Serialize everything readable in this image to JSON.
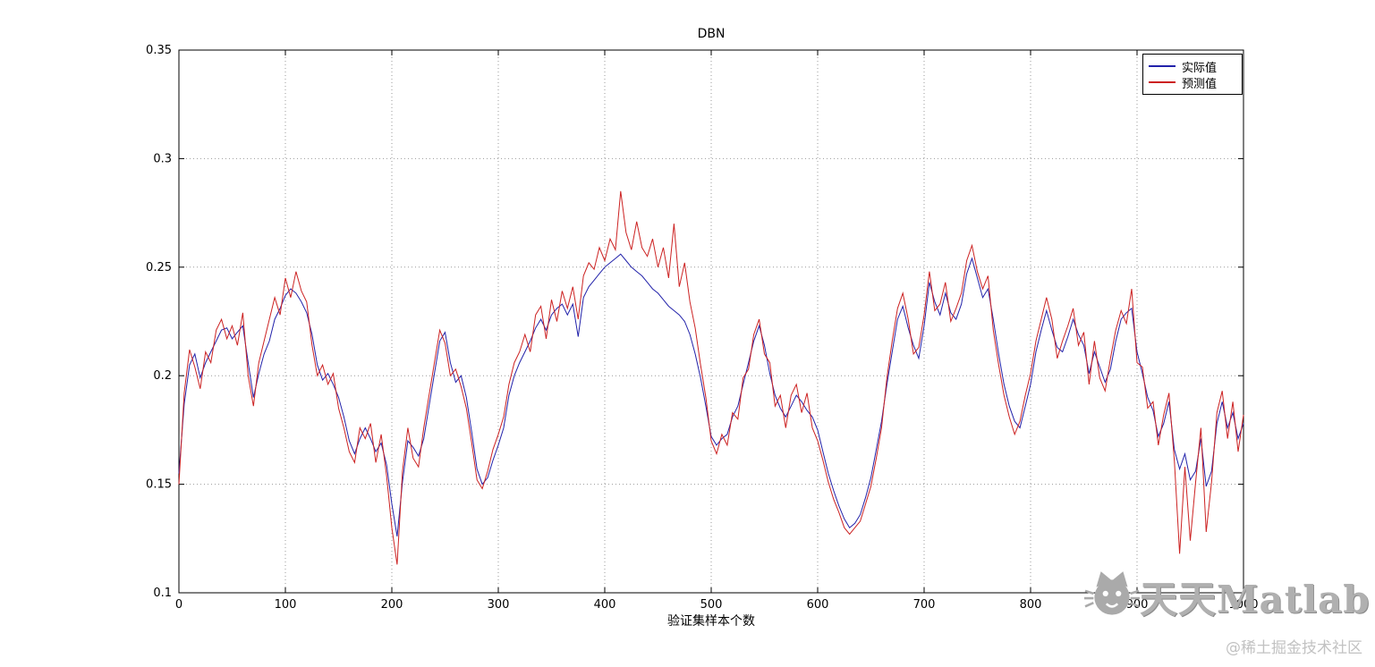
{
  "figure": {
    "title": "DBN",
    "xlabel": "验证集样本个数",
    "background": "#ffffff"
  },
  "watermark": {
    "brand": "天天Matlab",
    "credit": "@稀土掘金技术社区"
  },
  "chart_data": {
    "type": "line",
    "title": "DBN",
    "xlabel": "验证集样本个数",
    "ylabel": "",
    "xlim": [
      0,
      1000
    ],
    "ylim": [
      0.1,
      0.35
    ],
    "x_ticks": [
      0,
      100,
      200,
      300,
      400,
      500,
      600,
      700,
      800,
      900,
      1000
    ],
    "x_tick_labels": [
      "0",
      "100",
      "200",
      "300",
      "400",
      "500",
      "600",
      "700",
      "800",
      "900",
      "1000"
    ],
    "y_ticks": [
      0.1,
      0.15,
      0.2,
      0.25,
      0.3,
      0.35
    ],
    "y_tick_labels": [
      "0.1",
      "0.15",
      "0.2",
      "0.25",
      "0.3",
      "0.35"
    ],
    "grid": true,
    "grid_style": "dotted",
    "legend_position": "top-right",
    "x_start": 0,
    "x_step": 5,
    "series": [
      {
        "name": "实际值",
        "color": "#2222aa",
        "values": [
          0.155,
          0.187,
          0.205,
          0.21,
          0.199,
          0.206,
          0.211,
          0.216,
          0.221,
          0.222,
          0.217,
          0.22,
          0.223,
          0.206,
          0.19,
          0.201,
          0.21,
          0.216,
          0.226,
          0.231,
          0.237,
          0.24,
          0.238,
          0.234,
          0.229,
          0.219,
          0.205,
          0.198,
          0.201,
          0.196,
          0.19,
          0.181,
          0.17,
          0.164,
          0.171,
          0.176,
          0.171,
          0.165,
          0.169,
          0.159,
          0.141,
          0.126,
          0.151,
          0.17,
          0.167,
          0.163,
          0.171,
          0.186,
          0.201,
          0.216,
          0.22,
          0.206,
          0.197,
          0.2,
          0.19,
          0.174,
          0.157,
          0.15,
          0.153,
          0.161,
          0.168,
          0.176,
          0.191,
          0.2,
          0.206,
          0.211,
          0.216,
          0.222,
          0.226,
          0.221,
          0.228,
          0.231,
          0.233,
          0.228,
          0.233,
          0.218,
          0.236,
          0.241,
          0.244,
          0.247,
          0.25,
          0.252,
          0.254,
          0.256,
          0.253,
          0.25,
          0.248,
          0.246,
          0.243,
          0.24,
          0.238,
          0.235,
          0.232,
          0.23,
          0.228,
          0.225,
          0.219,
          0.21,
          0.199,
          0.186,
          0.172,
          0.168,
          0.171,
          0.173,
          0.181,
          0.186,
          0.196,
          0.206,
          0.216,
          0.223,
          0.214,
          0.201,
          0.191,
          0.185,
          0.181,
          0.186,
          0.191,
          0.188,
          0.184,
          0.181,
          0.175,
          0.165,
          0.155,
          0.147,
          0.14,
          0.134,
          0.13,
          0.132,
          0.136,
          0.144,
          0.153,
          0.166,
          0.179,
          0.196,
          0.211,
          0.226,
          0.232,
          0.222,
          0.214,
          0.208,
          0.223,
          0.243,
          0.234,
          0.228,
          0.238,
          0.229,
          0.226,
          0.233,
          0.247,
          0.254,
          0.245,
          0.236,
          0.24,
          0.226,
          0.21,
          0.196,
          0.186,
          0.179,
          0.176,
          0.186,
          0.196,
          0.211,
          0.221,
          0.23,
          0.221,
          0.213,
          0.211,
          0.218,
          0.226,
          0.219,
          0.214,
          0.201,
          0.211,
          0.204,
          0.197,
          0.203,
          0.216,
          0.226,
          0.229,
          0.231,
          0.211,
          0.201,
          0.19,
          0.184,
          0.172,
          0.178,
          0.188,
          0.166,
          0.157,
          0.164,
          0.152,
          0.156,
          0.171,
          0.149,
          0.156,
          0.178,
          0.188,
          0.176,
          0.183,
          0.171,
          0.178
        ]
      },
      {
        "name": "预测值",
        "color": "#cc2222",
        "values": [
          0.15,
          0.192,
          0.212,
          0.204,
          0.194,
          0.211,
          0.206,
          0.221,
          0.226,
          0.217,
          0.223,
          0.214,
          0.229,
          0.2,
          0.186,
          0.206,
          0.216,
          0.226,
          0.236,
          0.228,
          0.245,
          0.236,
          0.248,
          0.239,
          0.234,
          0.214,
          0.2,
          0.205,
          0.196,
          0.201,
          0.185,
          0.176,
          0.165,
          0.16,
          0.176,
          0.171,
          0.178,
          0.16,
          0.173,
          0.154,
          0.13,
          0.113,
          0.156,
          0.176,
          0.162,
          0.158,
          0.176,
          0.191,
          0.206,
          0.221,
          0.215,
          0.2,
          0.203,
          0.195,
          0.185,
          0.169,
          0.152,
          0.148,
          0.156,
          0.166,
          0.173,
          0.181,
          0.196,
          0.206,
          0.211,
          0.219,
          0.211,
          0.228,
          0.232,
          0.217,
          0.235,
          0.225,
          0.239,
          0.231,
          0.241,
          0.226,
          0.246,
          0.252,
          0.249,
          0.259,
          0.253,
          0.263,
          0.258,
          0.285,
          0.266,
          0.258,
          0.271,
          0.259,
          0.255,
          0.263,
          0.25,
          0.259,
          0.245,
          0.27,
          0.241,
          0.252,
          0.234,
          0.222,
          0.205,
          0.19,
          0.17,
          0.164,
          0.173,
          0.168,
          0.183,
          0.18,
          0.199,
          0.203,
          0.219,
          0.226,
          0.21,
          0.206,
          0.186,
          0.191,
          0.176,
          0.191,
          0.196,
          0.183,
          0.192,
          0.176,
          0.17,
          0.161,
          0.151,
          0.143,
          0.137,
          0.13,
          0.127,
          0.13,
          0.133,
          0.141,
          0.149,
          0.162,
          0.176,
          0.199,
          0.216,
          0.231,
          0.238,
          0.226,
          0.21,
          0.213,
          0.228,
          0.248,
          0.23,
          0.233,
          0.243,
          0.225,
          0.231,
          0.238,
          0.253,
          0.26,
          0.248,
          0.24,
          0.246,
          0.221,
          0.205,
          0.191,
          0.181,
          0.173,
          0.179,
          0.191,
          0.201,
          0.216,
          0.226,
          0.236,
          0.226,
          0.208,
          0.216,
          0.223,
          0.231,
          0.214,
          0.22,
          0.196,
          0.216,
          0.199,
          0.193,
          0.208,
          0.221,
          0.23,
          0.224,
          0.24,
          0.206,
          0.204,
          0.185,
          0.188,
          0.168,
          0.182,
          0.192,
          0.161,
          0.118,
          0.158,
          0.124,
          0.151,
          0.176,
          0.128,
          0.151,
          0.183,
          0.193,
          0.171,
          0.188,
          0.165,
          0.182
        ]
      }
    ]
  }
}
